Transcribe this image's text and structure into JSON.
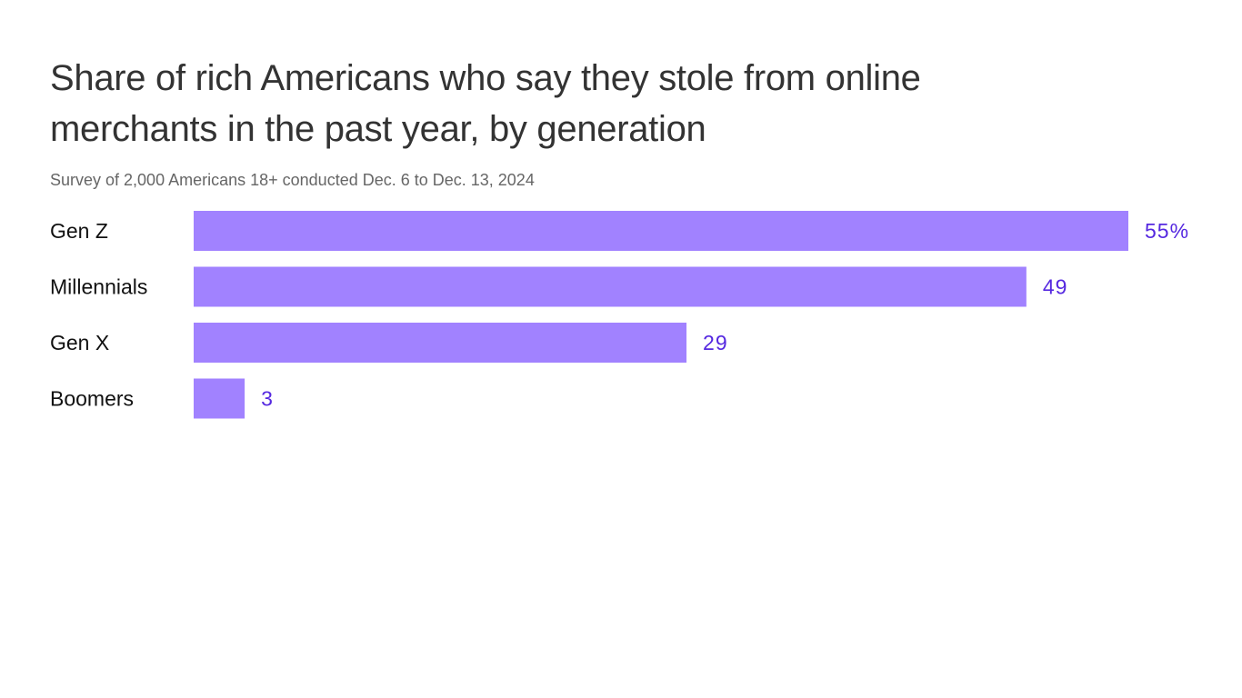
{
  "chart_data": {
    "type": "bar",
    "orientation": "horizontal",
    "title": "Share of rich Americans who say they stole from online merchants in the past year, by generation",
    "subtitle": "Survey of 2,000 Americans 18+ conducted Dec. 6 to Dec. 13, 2024",
    "categories": [
      "Gen Z",
      "Millennials",
      "Gen X",
      "Boomers"
    ],
    "values": [
      55,
      49,
      29,
      3
    ],
    "value_labels": [
      "55%",
      "49",
      "29",
      "3"
    ],
    "unit": "%",
    "xlim": [
      0,
      55
    ],
    "grid": false,
    "colors": {
      "bar": "#a182ff",
      "value_label": "#5528e0"
    }
  }
}
